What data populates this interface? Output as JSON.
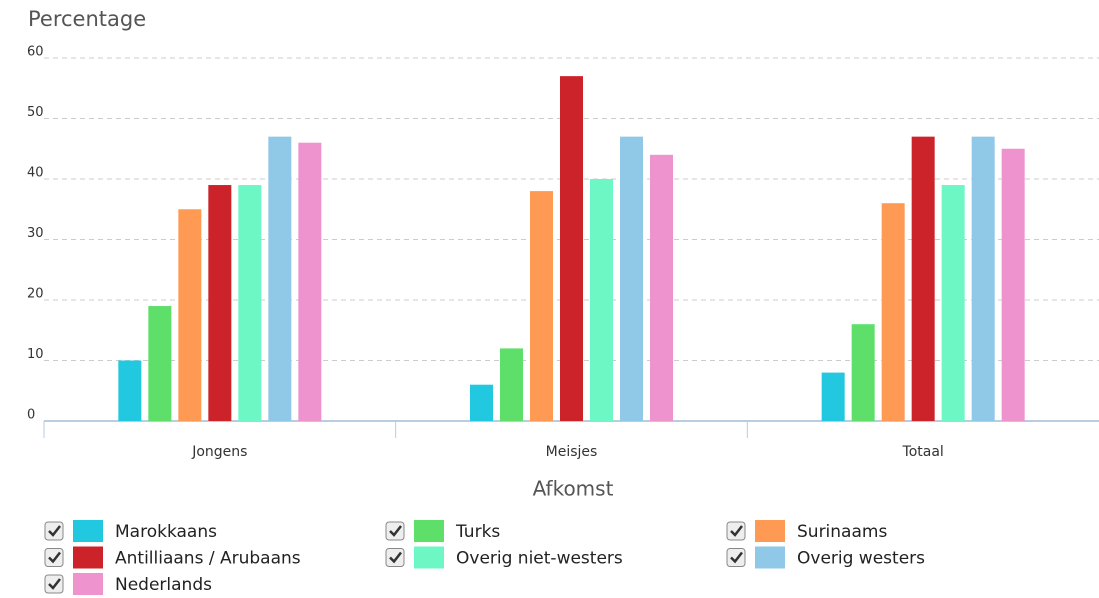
{
  "chart_data": {
    "type": "bar",
    "y_label": "Percentage",
    "x_label": "Afkomst",
    "categories": [
      "Jongens",
      "Meisjes",
      "Totaal"
    ],
    "series": [
      {
        "name": "Marokkaans",
        "color": "#22c7e0",
        "values": [
          10,
          6,
          8
        ]
      },
      {
        "name": "Turks",
        "color": "#5ddf6a",
        "values": [
          19,
          12,
          16
        ]
      },
      {
        "name": "Surinaams",
        "color": "#ff9a55",
        "values": [
          35,
          38,
          36
        ]
      },
      {
        "name": "Antilliaans / Arubaans",
        "color": "#cc2229",
        "values": [
          39,
          57,
          47
        ]
      },
      {
        "name": "Overig niet-westers",
        "color": "#6cf7c4",
        "values": [
          39,
          40,
          39
        ]
      },
      {
        "name": "Overig westers",
        "color": "#90c8e8",
        "values": [
          47,
          47,
          47
        ]
      },
      {
        "name": "Nederlands",
        "color": "#ef93cf",
        "values": [
          46,
          44,
          45
        ]
      }
    ],
    "ylim": [
      0,
      60
    ],
    "yticks": [
      0,
      10,
      20,
      30,
      40,
      50,
      60
    ],
    "grid": true
  }
}
